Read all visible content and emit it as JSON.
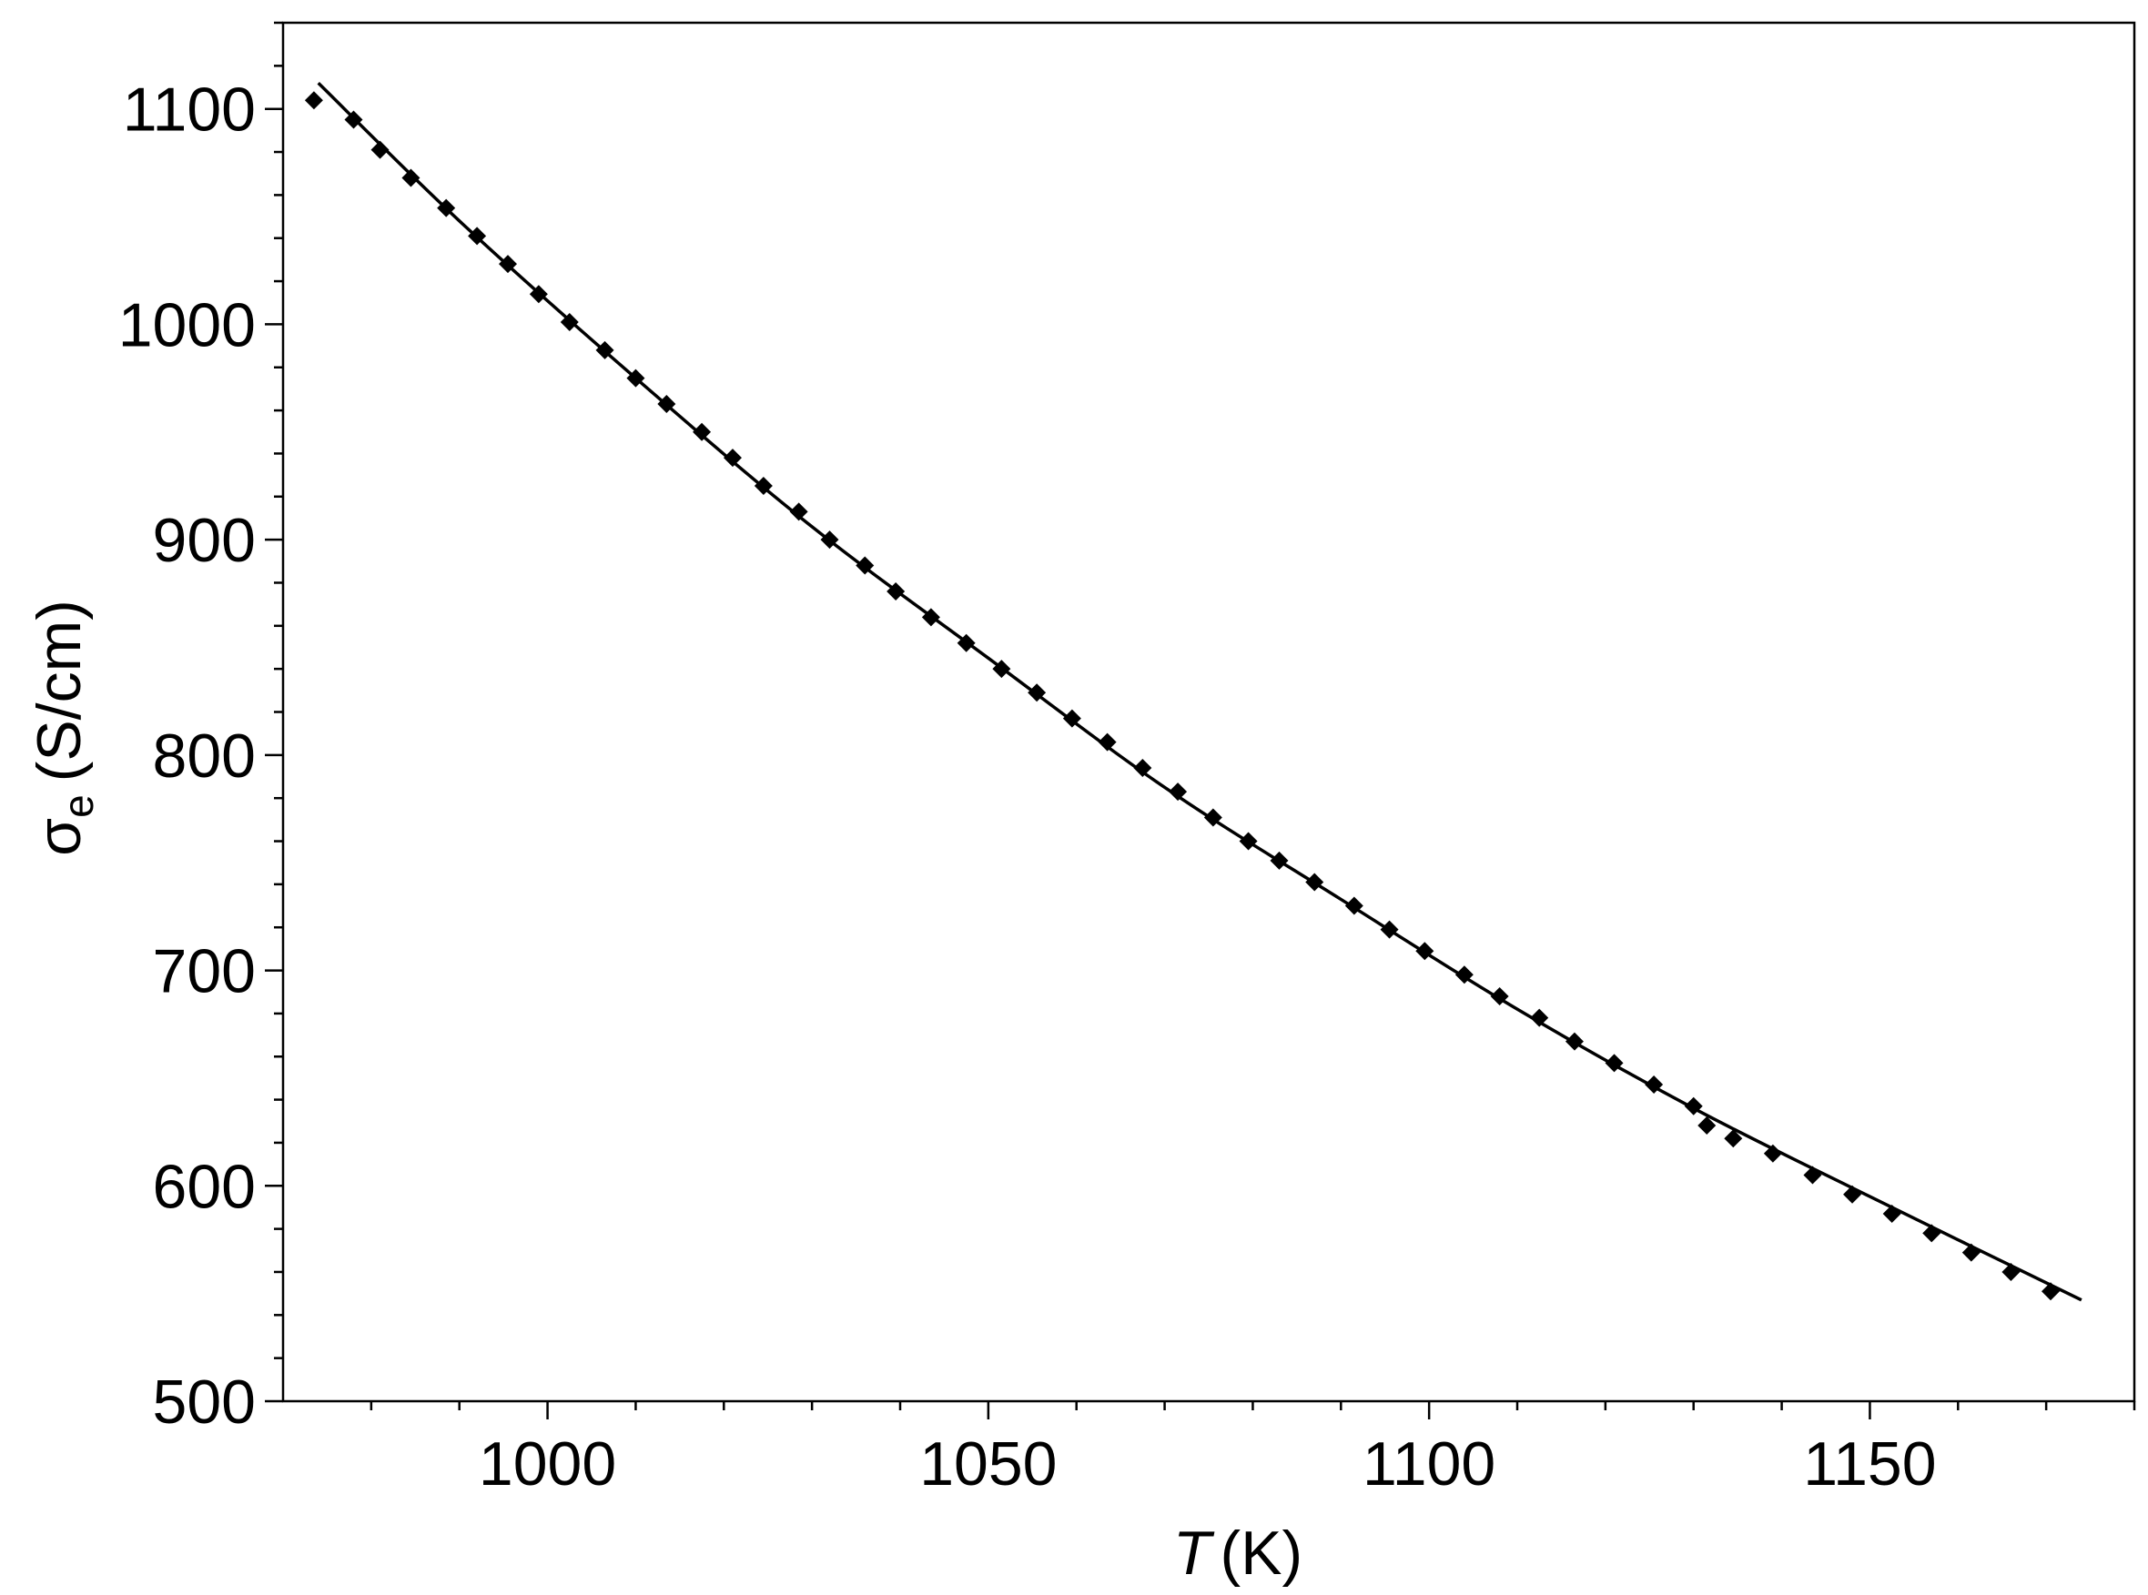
{
  "chart_data": {
    "type": "scatter",
    "title": "",
    "xlabel": {
      "symbol": "T",
      "unit": "(K)"
    },
    "ylabel": {
      "symbol": "σ",
      "subscript": "e",
      "unit": "(S/cm)"
    },
    "xlim": [
      970,
      1180
    ],
    "ylim": [
      500,
      1140
    ],
    "xticks": [
      1000,
      1050,
      1100,
      1150
    ],
    "xtick_labels": [
      "1000",
      "1050",
      "1100",
      "1150"
    ],
    "yticks": [
      500,
      600,
      700,
      800,
      900,
      1000,
      1100
    ],
    "ytick_labels": [
      "500",
      "600",
      "700",
      "800",
      "900",
      "1000",
      "1100"
    ],
    "grid": false,
    "legend": "none",
    "series": [
      {
        "kind": "markers",
        "marker": "diamond",
        "color": "#000000",
        "x": [
          973.5,
          978,
          981,
          984.5,
          988.5,
          992,
          995.5,
          999,
          1002.5,
          1006.5,
          1010,
          1013.5,
          1017.5,
          1021,
          1024.5,
          1028.5,
          1032,
          1036,
          1039.5,
          1043.5,
          1047.5,
          1051.5,
          1055.5,
          1059.5,
          1063.5,
          1067.5,
          1071.5,
          1075.5,
          1079.5,
          1083,
          1087,
          1091.5,
          1095.5,
          1099.5,
          1104,
          1108,
          1112.5,
          1116.5,
          1121,
          1125.5,
          1130,
          1131.5,
          1134.5,
          1139,
          1143.5,
          1148,
          1152.5,
          1157,
          1161.5,
          1166,
          1170.5
        ],
        "y": [
          1104,
          1095,
          1081,
          1068,
          1054,
          1041,
          1028,
          1014,
          1001,
          988,
          975,
          963,
          950,
          938,
          925,
          913,
          900,
          888,
          876,
          864,
          852,
          840,
          829,
          817,
          806,
          794,
          783,
          771,
          760,
          751,
          741,
          730,
          719,
          709,
          698,
          688,
          678,
          667,
          657,
          647,
          637,
          628,
          622,
          615,
          605,
          596,
          587,
          578,
          569,
          560,
          551
        ]
      },
      {
        "kind": "line",
        "color": "#000000",
        "x": [
          974,
          990,
          1010,
          1030,
          1050,
          1070,
          1090,
          1110,
          1130,
          1150,
          1174
        ],
        "y": [
          1112,
          1048,
          975,
          906,
          845,
          785,
          733,
          682,
          636,
          595,
          547
        ]
      }
    ]
  }
}
